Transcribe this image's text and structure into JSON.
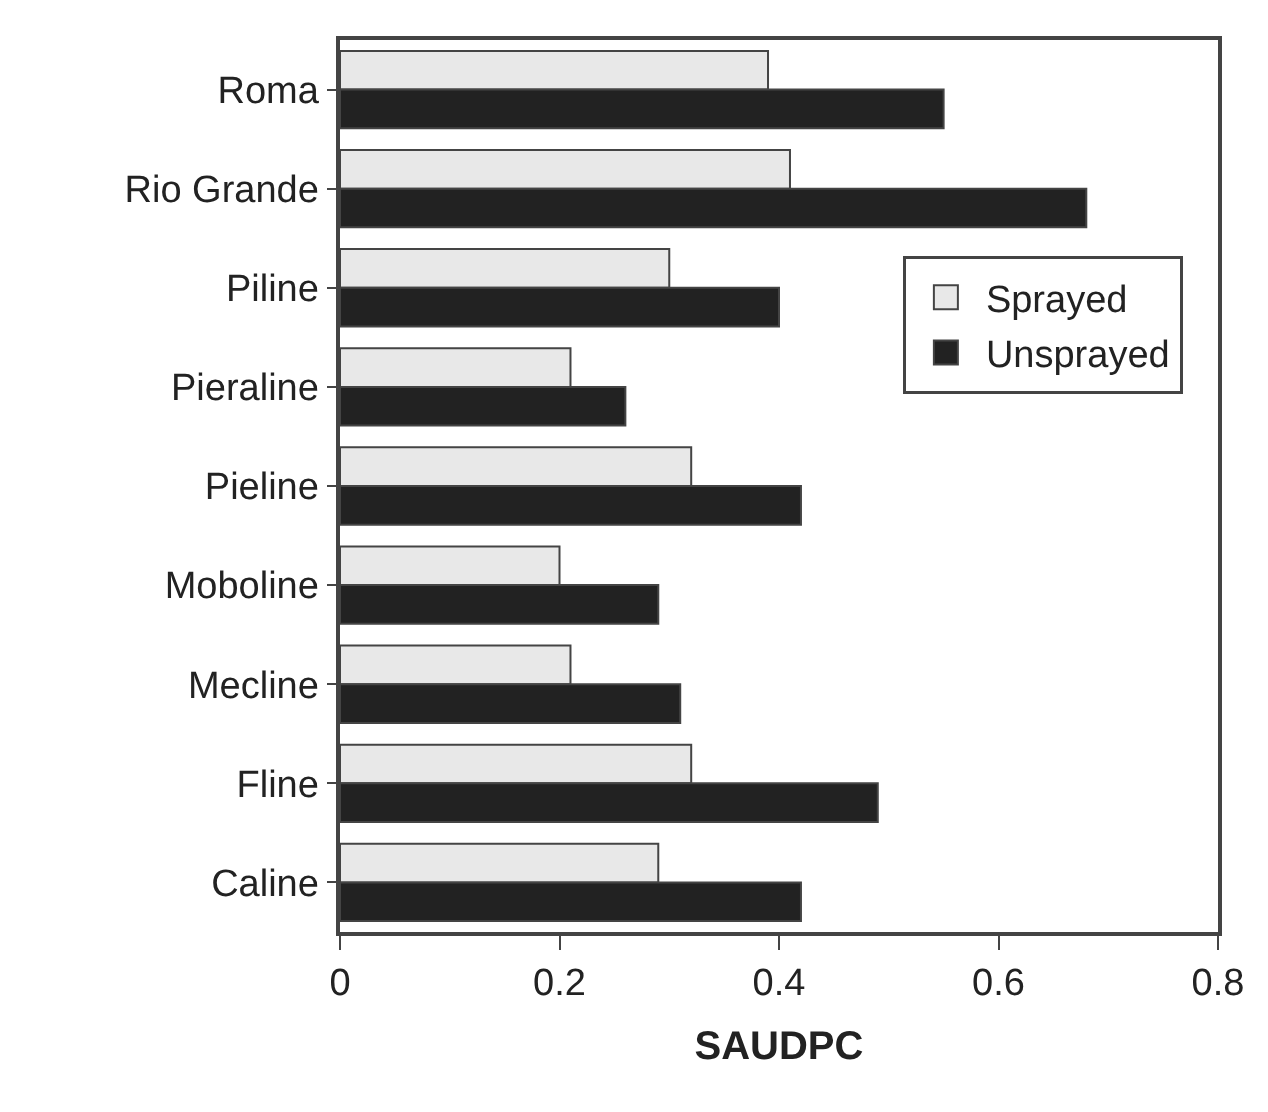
{
  "chart_data": {
    "type": "bar",
    "orientation": "horizontal",
    "xlabel": "SAUDPC",
    "categories": [
      "Roma",
      "Rio Grande",
      "Piline",
      "Pieraline",
      "Pieline",
      "Moboline",
      "Mecline",
      "Fline",
      "Caline"
    ],
    "series": [
      {
        "name": "Sprayed",
        "color": "#e8e8e8",
        "values": [
          0.39,
          0.41,
          0.3,
          0.21,
          0.32,
          0.2,
          0.21,
          0.32,
          0.29
        ]
      },
      {
        "name": "Unsprayed",
        "color": "#222222",
        "values": [
          0.55,
          0.68,
          0.4,
          0.26,
          0.42,
          0.29,
          0.31,
          0.49,
          0.42
        ]
      }
    ],
    "xlim": [
      0,
      0.8
    ],
    "xticks": [
      0,
      0.2,
      0.4,
      0.6,
      0.8
    ],
    "grid": false,
    "legend": "right"
  }
}
